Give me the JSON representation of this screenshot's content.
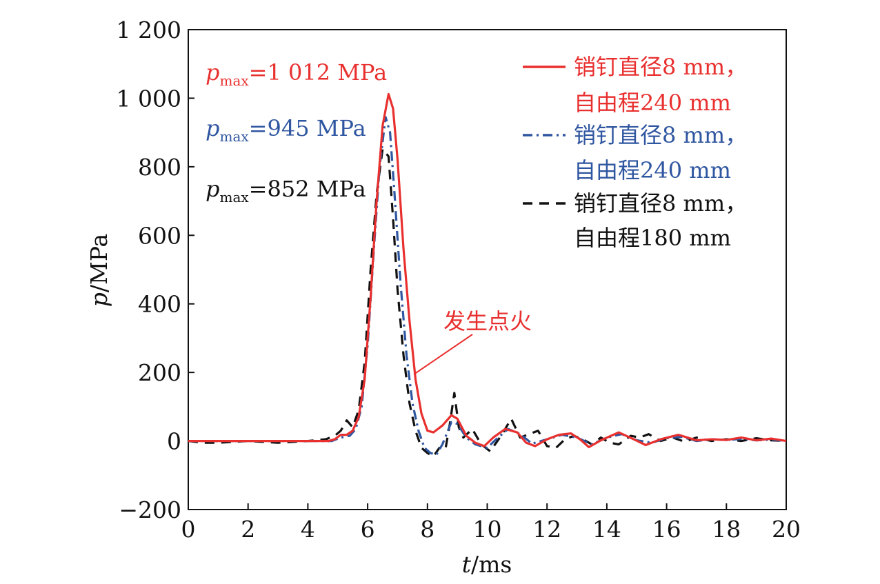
{
  "chart_data": {
    "type": "line",
    "xlabel_var": "t",
    "xlabel_unit": "/ms",
    "ylabel_var": "p",
    "ylabel_unit": "/MPa",
    "xlim": [
      0,
      20
    ],
    "ylim": [
      -200,
      1200
    ],
    "x_ticks": [
      0,
      2,
      4,
      6,
      8,
      10,
      12,
      14,
      16,
      18,
      20
    ],
    "y_ticks": [
      -200,
      0,
      200,
      400,
      600,
      800,
      1000,
      1200
    ],
    "x_tick_labels": [
      "0",
      "2",
      "4",
      "6",
      "8",
      "10",
      "12",
      "14",
      "16",
      "18",
      "20"
    ],
    "y_tick_labels": [
      "−200",
      "0",
      "200",
      "400",
      "600",
      "800",
      "1 000",
      "1 200"
    ],
    "grid": false,
    "legend_position": "top-right",
    "series": [
      {
        "legend_line1": "销钉直径8 mm，",
        "legend_line2": "自由程240 mm",
        "color": "#e8302f",
        "style": "solid",
        "pmax_label": "p",
        "pmax_sub": "max",
        "pmax_value": "=1 012 MPa",
        "points": [
          [
            0,
            0
          ],
          [
            1,
            0
          ],
          [
            2,
            0
          ],
          [
            3,
            0
          ],
          [
            4,
            0
          ],
          [
            4.7,
            0
          ],
          [
            4.9,
            5
          ],
          [
            5.1,
            18
          ],
          [
            5.3,
            18
          ],
          [
            5.5,
            30
          ],
          [
            5.7,
            70
          ],
          [
            5.9,
            180
          ],
          [
            6.1,
            420
          ],
          [
            6.3,
            700
          ],
          [
            6.5,
            920
          ],
          [
            6.7,
            1012
          ],
          [
            6.85,
            970
          ],
          [
            7.0,
            820
          ],
          [
            7.2,
            560
          ],
          [
            7.4,
            350
          ],
          [
            7.6,
            180
          ],
          [
            7.8,
            80
          ],
          [
            8.0,
            30
          ],
          [
            8.2,
            25
          ],
          [
            8.5,
            45
          ],
          [
            8.8,
            75
          ],
          [
            9.0,
            65
          ],
          [
            9.3,
            15
          ],
          [
            9.6,
            -5
          ],
          [
            9.9,
            -15
          ],
          [
            10.2,
            10
          ],
          [
            10.6,
            35
          ],
          [
            11.0,
            25
          ],
          [
            11.3,
            -5
          ],
          [
            11.6,
            -15
          ],
          [
            12.0,
            5
          ],
          [
            12.4,
            18
          ],
          [
            12.8,
            22
          ],
          [
            13.1,
            5
          ],
          [
            13.4,
            -18
          ],
          [
            13.8,
            2
          ],
          [
            14.4,
            25
          ],
          [
            14.9,
            5
          ],
          [
            15.3,
            -12
          ],
          [
            15.8,
            5
          ],
          [
            16.4,
            18
          ],
          [
            17.0,
            2
          ],
          [
            17.5,
            5
          ],
          [
            18.0,
            3
          ],
          [
            18.5,
            10
          ],
          [
            19.0,
            2
          ],
          [
            19.5,
            7
          ],
          [
            20,
            0
          ]
        ]
      },
      {
        "legend_line1": "销钉直径8 mm，",
        "legend_line2": "自由程240 mm",
        "color": "#2f56a0",
        "style": "dashdot",
        "pmax_label": "p",
        "pmax_sub": "max",
        "pmax_value": "=945 MPa",
        "points": [
          [
            0,
            0
          ],
          [
            1,
            0
          ],
          [
            2,
            0
          ],
          [
            3,
            0
          ],
          [
            4,
            0
          ],
          [
            4.8,
            0
          ],
          [
            5.1,
            10
          ],
          [
            5.4,
            15
          ],
          [
            5.6,
            35
          ],
          [
            5.8,
            100
          ],
          [
            6.0,
            280
          ],
          [
            6.2,
            550
          ],
          [
            6.4,
            800
          ],
          [
            6.6,
            945
          ],
          [
            6.75,
            900
          ],
          [
            6.9,
            720
          ],
          [
            7.1,
            460
          ],
          [
            7.3,
            250
          ],
          [
            7.5,
            110
          ],
          [
            7.7,
            30
          ],
          [
            7.9,
            -20
          ],
          [
            8.1,
            -35
          ],
          [
            8.3,
            -40
          ],
          [
            8.5,
            -10
          ],
          [
            8.8,
            55
          ],
          [
            9.0,
            50
          ],
          [
            9.3,
            10
          ],
          [
            9.6,
            -10
          ],
          [
            10.0,
            -20
          ],
          [
            10.3,
            5
          ],
          [
            10.7,
            35
          ],
          [
            11.1,
            20
          ],
          [
            11.5,
            -8
          ],
          [
            12.0,
            5
          ],
          [
            12.5,
            18
          ],
          [
            13.0,
            10
          ],
          [
            13.5,
            -10
          ],
          [
            14.0,
            10
          ],
          [
            14.5,
            20
          ],
          [
            15.0,
            2
          ],
          [
            15.5,
            -5
          ],
          [
            16.0,
            8
          ],
          [
            16.5,
            12
          ],
          [
            17.0,
            0
          ],
          [
            17.5,
            5
          ],
          [
            18.0,
            3
          ],
          [
            18.5,
            6
          ],
          [
            19.0,
            2
          ],
          [
            19.5,
            4
          ],
          [
            20,
            0
          ]
        ]
      },
      {
        "legend_line1": "销钉直径8 mm，",
        "legend_line2": "自由程180 mm",
        "color": "#111111",
        "style": "dashed",
        "pmax_label": "p",
        "pmax_sub": "max",
        "pmax_value": "=852 MPa",
        "points": [
          [
            0,
            0
          ],
          [
            0.5,
            -5
          ],
          [
            1,
            -5
          ],
          [
            2,
            0
          ],
          [
            3,
            -5
          ],
          [
            4,
            0
          ],
          [
            4.6,
            5
          ],
          [
            4.9,
            15
          ],
          [
            5.1,
            30
          ],
          [
            5.3,
            60
          ],
          [
            5.5,
            40
          ],
          [
            5.7,
            90
          ],
          [
            5.9,
            230
          ],
          [
            6.1,
            500
          ],
          [
            6.3,
            720
          ],
          [
            6.5,
            852
          ],
          [
            6.7,
            830
          ],
          [
            6.85,
            650
          ],
          [
            7.0,
            440
          ],
          [
            7.2,
            250
          ],
          [
            7.4,
            110
          ],
          [
            7.6,
            30
          ],
          [
            7.8,
            -20
          ],
          [
            8.0,
            -35
          ],
          [
            8.2,
            -45
          ],
          [
            8.4,
            -20
          ],
          [
            8.6,
            -25
          ],
          [
            8.75,
            50
          ],
          [
            8.9,
            140
          ],
          [
            9.05,
            40
          ],
          [
            9.2,
            10
          ],
          [
            9.5,
            35
          ],
          [
            9.8,
            -10
          ],
          [
            10.1,
            -30
          ],
          [
            10.5,
            20
          ],
          [
            10.8,
            65
          ],
          [
            11.1,
            10
          ],
          [
            11.4,
            20
          ],
          [
            11.7,
            30
          ],
          [
            12.0,
            -15
          ],
          [
            12.3,
            -20
          ],
          [
            12.6,
            5
          ],
          [
            12.9,
            15
          ],
          [
            13.2,
            5
          ],
          [
            13.5,
            -10
          ],
          [
            13.8,
            10
          ],
          [
            14.1,
            -5
          ],
          [
            14.4,
            -10
          ],
          [
            14.8,
            15
          ],
          [
            15.1,
            10
          ],
          [
            15.4,
            20
          ],
          [
            15.8,
            0
          ],
          [
            16.2,
            10
          ],
          [
            16.6,
            -2
          ],
          [
            17.0,
            10
          ],
          [
            17.5,
            0
          ],
          [
            18.0,
            5
          ],
          [
            18.5,
            0
          ],
          [
            19.0,
            8
          ],
          [
            19.5,
            2
          ],
          [
            20,
            0
          ]
        ]
      }
    ],
    "annotation": {
      "text": "发生点火",
      "color": "#e8302f"
    }
  }
}
